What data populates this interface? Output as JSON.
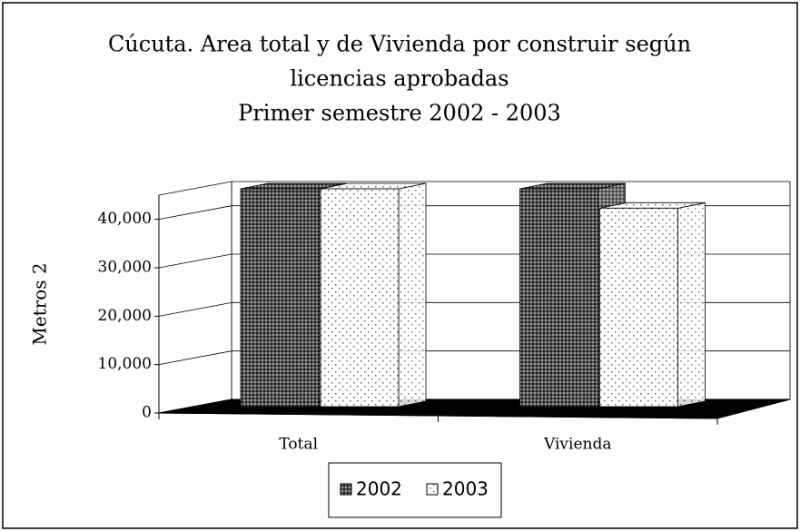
{
  "chart_data": {
    "type": "bar3d",
    "title": [
      "Cúcuta. Area total y de Vivienda por construir según",
      "licencias aprobadas",
      "Primer semestre 2002 - 2003"
    ],
    "y_label": "Metros 2",
    "categories": [
      "Total",
      "Vivienda"
    ],
    "series": [
      {
        "name": "2002",
        "color": "#505050",
        "values": [
          45000,
          45000
        ]
      },
      {
        "name": "2003",
        "color": "#ffffff",
        "values": [
          45000,
          41000
        ]
      }
    ],
    "ylim": [
      0,
      45000
    ],
    "yticks": [
      0,
      {
        "value": 10000,
        "label": "10,000"
      },
      {
        "value": 20000,
        "label": "20,000"
      },
      {
        "value": 30000,
        "label": "30,000"
      },
      {
        "value": 40000,
        "label": "40,000"
      }
    ],
    "grid": true,
    "legend": "bottom"
  }
}
